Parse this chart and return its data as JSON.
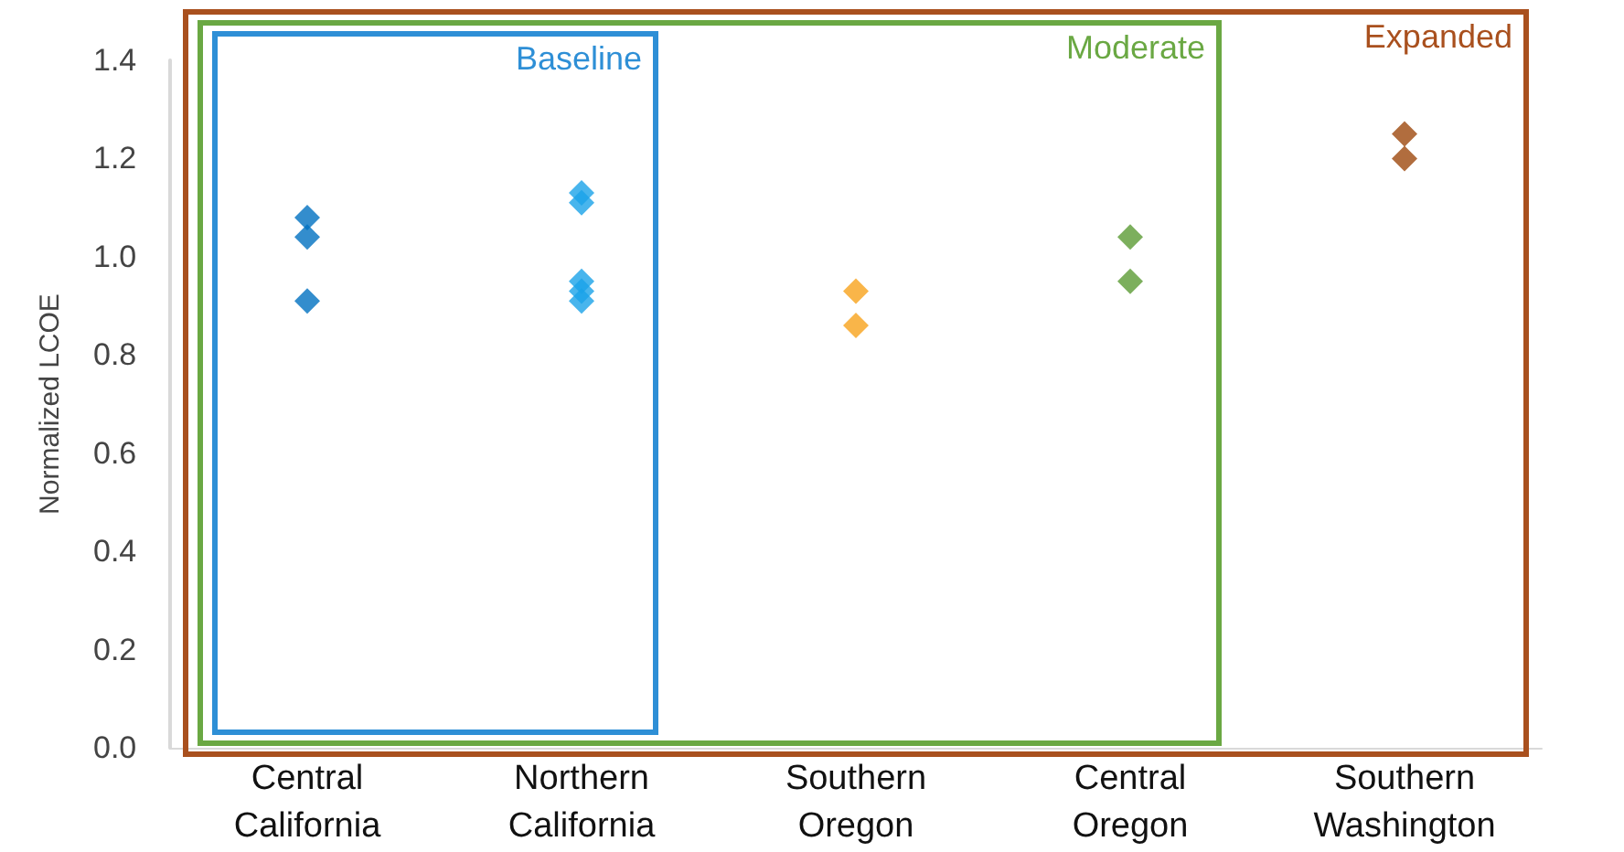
{
  "chart_data": {
    "type": "scatter",
    "ylabel": "Normalized LCOE",
    "categories": [
      "Central\nCalifornia",
      "Northern\nCalifornia",
      "Southern\nOregon",
      "Central\nOregon",
      "Southern\nWashington"
    ],
    "series": [
      {
        "color": "#0070c0",
        "x": [
          "Central\nCalifornia",
          "Central\nCalifornia",
          "Central\nCalifornia"
        ],
        "values": [
          1.08,
          1.04,
          0.91
        ]
      },
      {
        "color": "#1aa3e8",
        "x": [
          "Northern\nCalifornia",
          "Northern\nCalifornia",
          "Northern\nCalifornia",
          "Northern\nCalifornia",
          "Northern\nCalifornia"
        ],
        "values": [
          1.13,
          1.11,
          0.95,
          0.93,
          0.91
        ]
      },
      {
        "color": "#f7a21b",
        "x": [
          "Southern\nOregon",
          "Southern\nOregon"
        ],
        "values": [
          0.93,
          0.86
        ]
      },
      {
        "color": "#5b9b35",
        "x": [
          "Central\nOregon",
          "Central\nOregon"
        ],
        "values": [
          1.04,
          0.95
        ]
      },
      {
        "color": "#9e480e",
        "x": [
          "Southern\nWashington",
          "Southern\nWashington"
        ],
        "values": [
          1.25,
          1.2
        ]
      }
    ],
    "ylim": [
      0,
      1.4
    ],
    "yticks": [
      {
        "value": 0,
        "label": "0.0"
      },
      0.2,
      0.4,
      0.6,
      0.8,
      {
        "value": 1,
        "label": "1.0"
      },
      1.2,
      1.4
    ],
    "annotations": [
      "Baseline",
      "Moderate",
      "Expanded"
    ],
    "marker": "diamond",
    "grid": false
  }
}
